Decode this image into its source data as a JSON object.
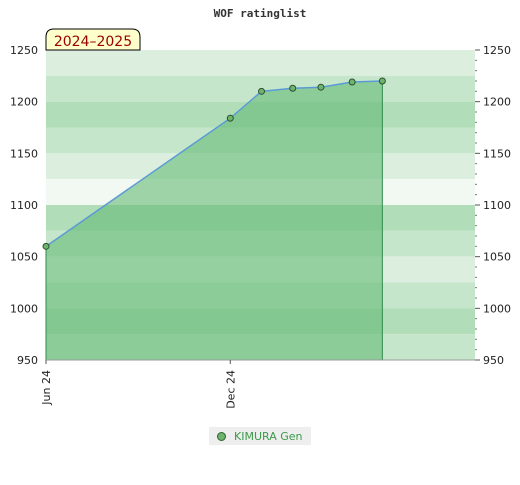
{
  "chart_data": {
    "type": "area",
    "title": "WOF ratinglist",
    "badge": "2024–2025",
    "y_ticks": [
      950,
      1000,
      1050,
      1100,
      1150,
      1200,
      1250
    ],
    "ylim": [
      950,
      1250
    ],
    "xlim": [
      "2024-06-01",
      "2025-08-01"
    ],
    "x_ticks": [
      {
        "label": "Jun 24",
        "date": "2024-06-01"
      },
      {
        "label": "Dec 24",
        "date": "2024-12-01"
      }
    ],
    "series": [
      {
        "name": "KIMURA Gen",
        "points": [
          {
            "date": "2024-06-01",
            "value": 1060
          },
          {
            "date": "2024-12-01",
            "value": 1184
          },
          {
            "date": "2025-01-01",
            "value": 1210
          },
          {
            "date": "2025-02-01",
            "value": 1213
          },
          {
            "date": "2025-03-01",
            "value": 1214
          },
          {
            "date": "2025-04-01",
            "value": 1219
          },
          {
            "date": "2025-05-01",
            "value": 1220
          }
        ]
      }
    ],
    "colors": {
      "line": "#5b9bd5",
      "area": "#66bb77",
      "marker": "#6db56d",
      "band_light": "#f2f8f2",
      "band_dark": "#7cc48f"
    }
  },
  "legend": {
    "label": "KIMURA Gen"
  }
}
